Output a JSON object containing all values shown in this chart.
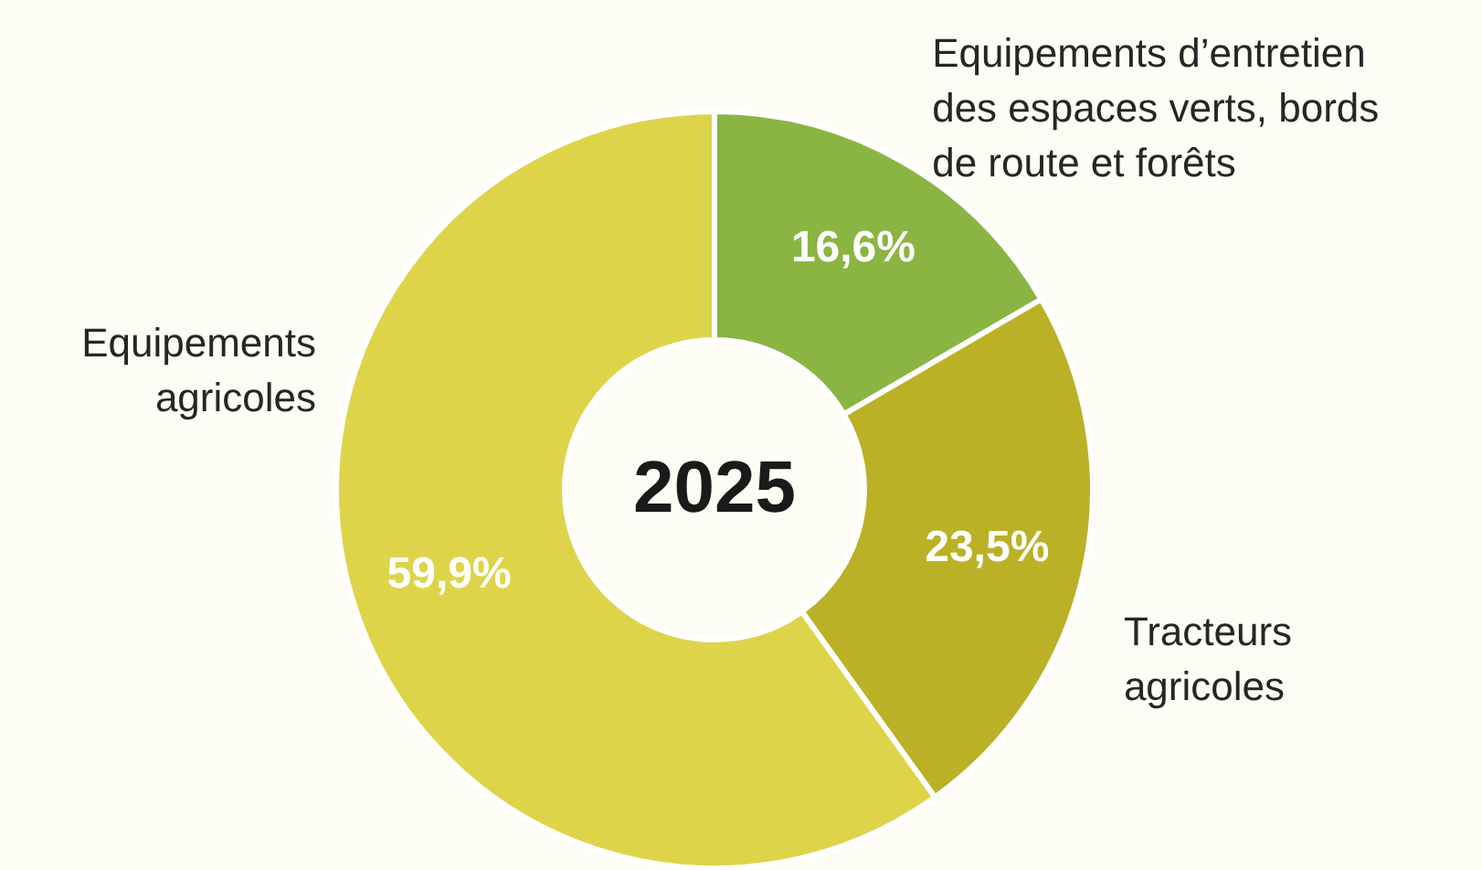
{
  "chart_data": {
    "type": "donut",
    "title": "2025",
    "categories": [
      "Equipements d’entretien des espaces verts, bords de route et forêts",
      "Tracteurs agricoles",
      "Equipements agricoles"
    ],
    "values": [
      16.6,
      23.5,
      59.9
    ],
    "colors": [
      "#8ab543",
      "#bab126",
      "#ded44a"
    ],
    "value_labels": [
      "16,6%",
      "23,5%",
      "59,9%"
    ]
  }
}
